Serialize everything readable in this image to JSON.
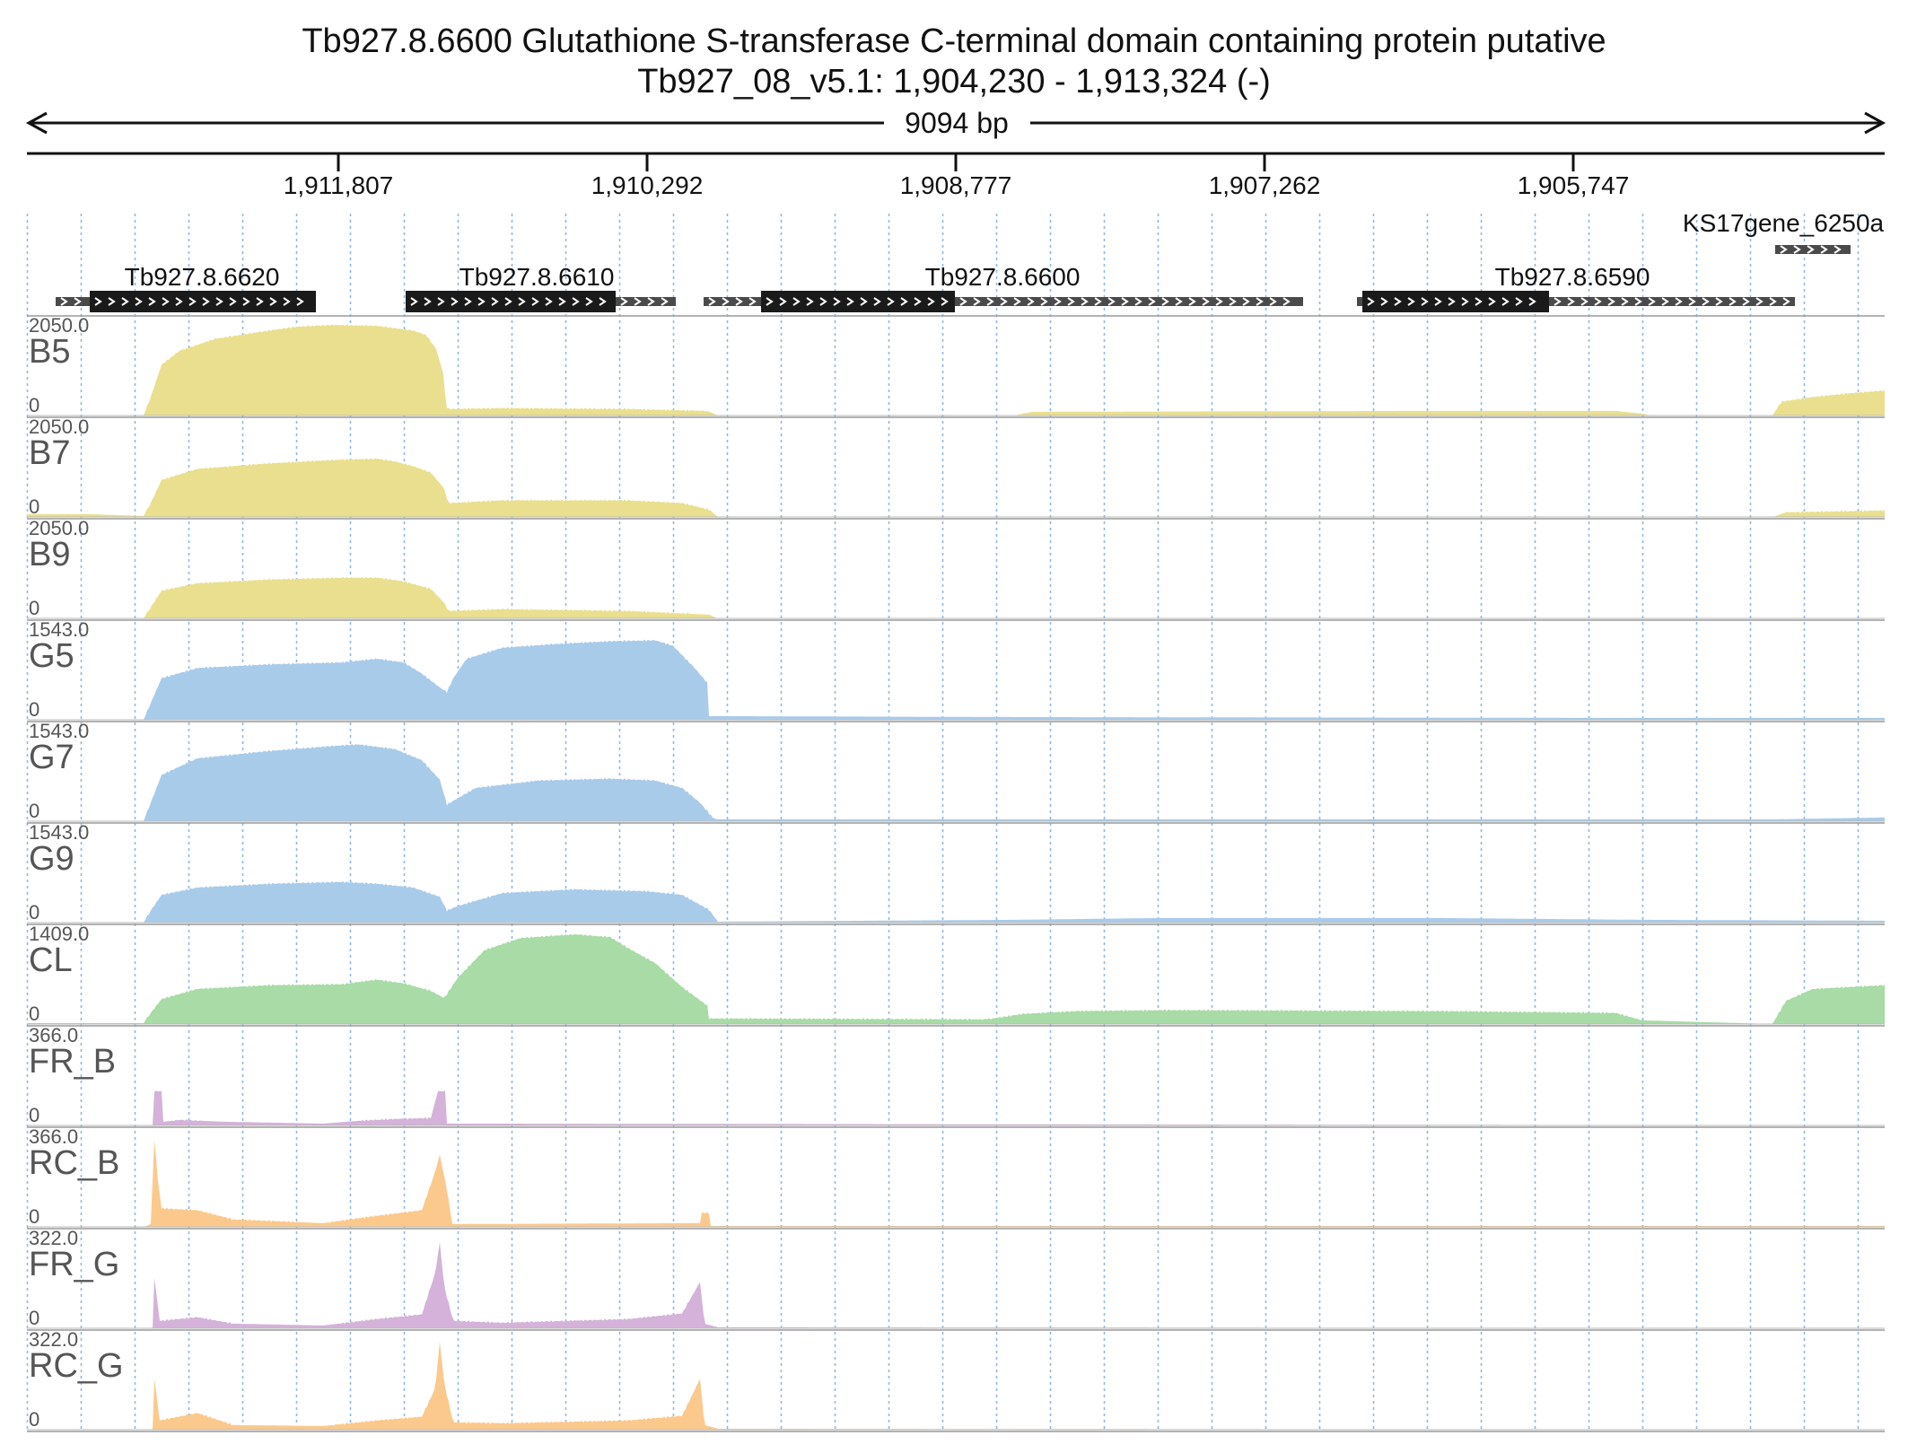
{
  "header": {
    "title": "Tb927.8.6600  Glutathione S-transferase  C-terminal domain containing protein  putative",
    "region": "Tb927_08_v5.1: 1,904,230 - 1,913,324 (-)"
  },
  "ruler": {
    "span_label": "9094 bp",
    "ticks": [
      "1,911,807",
      "1,910,292",
      "1,908,777",
      "1,907,262",
      "1,905,747"
    ]
  },
  "genes": [
    {
      "name": "Tb927.8.6620"
    },
    {
      "name": "Tb927.8.6610"
    },
    {
      "name": "Tb927.8.6600"
    },
    {
      "name": "Tb927.8.6590"
    },
    {
      "name": "KS17gene_6250a"
    }
  ],
  "tracks": [
    {
      "name": "B5",
      "max": "2050.0",
      "zero": "0",
      "color": "#e9df8e"
    },
    {
      "name": "B7",
      "max": "2050.0",
      "zero": "0",
      "color": "#e9df8e"
    },
    {
      "name": "B9",
      "max": "2050.0",
      "zero": "0",
      "color": "#e9df8e"
    },
    {
      "name": "G5",
      "max": "1543.0",
      "zero": "0",
      "color": "#a9cbea"
    },
    {
      "name": "G7",
      "max": "1543.0",
      "zero": "0",
      "color": "#a9cbea"
    },
    {
      "name": "G9",
      "max": "1543.0",
      "zero": "0",
      "color": "#a9cbea"
    },
    {
      "name": "CL",
      "max": "1409.0",
      "zero": "0",
      "color": "#a8dba6"
    },
    {
      "name": "FR_B",
      "max": "366.0",
      "zero": "0",
      "color": "#d4b2d9"
    },
    {
      "name": "RC_B",
      "max": "366.0",
      "zero": "0",
      "color": "#fbc98c"
    },
    {
      "name": "FR_G",
      "max": "322.0",
      "zero": "0",
      "color": "#d4b2d9"
    },
    {
      "name": "RC_G",
      "max": "322.0",
      "zero": "0",
      "color": "#fbc98c"
    }
  ],
  "colors": {
    "grid": "#8fb9e0",
    "gene_cds": "#1a1a1a",
    "gene_utr": "#4a4a4a",
    "separator": "#9a9a9a"
  }
}
